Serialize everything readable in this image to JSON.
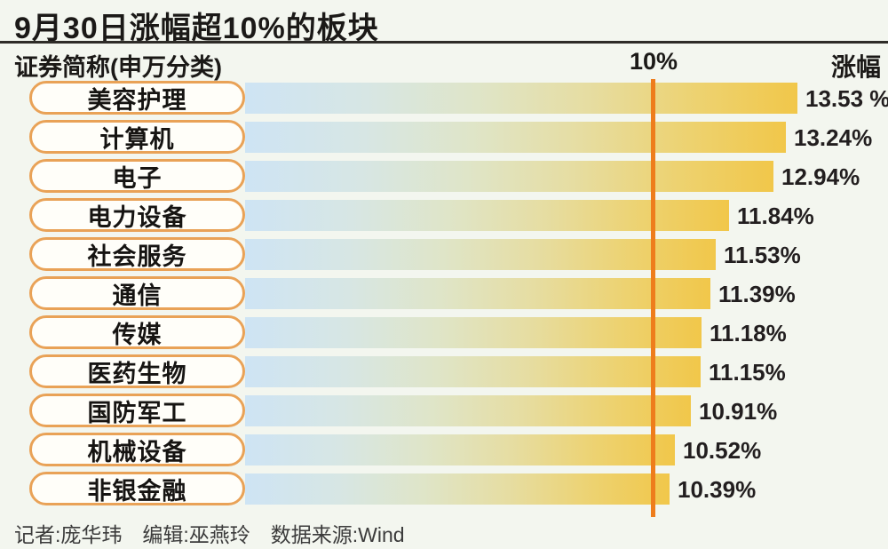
{
  "title": "9月30日涨幅超10%的板块",
  "header": {
    "left_label": "证券简称(申万分类)",
    "threshold_label": "10%",
    "right_label": "涨幅"
  },
  "chart_data": {
    "type": "bar",
    "orientation": "horizontal",
    "title": "9月30日涨幅超10%的板块",
    "categories": [
      "美容护理",
      "计算机",
      "电子",
      "电力设备",
      "社会服务",
      "通信",
      "传媒",
      "医药生物",
      "国防军工",
      "机械设备",
      "非银金融"
    ],
    "values": [
      13.53,
      13.24,
      12.94,
      11.84,
      11.53,
      11.39,
      11.18,
      11.15,
      10.91,
      10.52,
      10.39
    ],
    "value_labels": [
      "13.53 %",
      "13.24%",
      "12.94%",
      "11.84%",
      "11.53%",
      "11.39%",
      "11.18%",
      "11.15%",
      "10.91%",
      "10.52%",
      "10.39%"
    ],
    "unit": "%",
    "xlim": [
      0,
      14.5
    ],
    "reference_line": {
      "value": 10,
      "label": "10%",
      "color": "#ee7d1c"
    },
    "legend": "none",
    "grid": false,
    "bar_gradient": [
      "#cee4f4",
      "#dfe5c8",
      "#e6dda2",
      "#f1c74a"
    ],
    "category_pill_border": "#e9a257",
    "source": "Wind"
  },
  "footer": {
    "text": "记者:庞华玮　编辑:巫燕玲　数据来源:Wind"
  },
  "colors": {
    "background": "#f3f6ef",
    "title_text": "#1b1917",
    "value_text": "#221e1f",
    "divider": "#2e2c28",
    "reference_line": "#ee7d1c"
  }
}
